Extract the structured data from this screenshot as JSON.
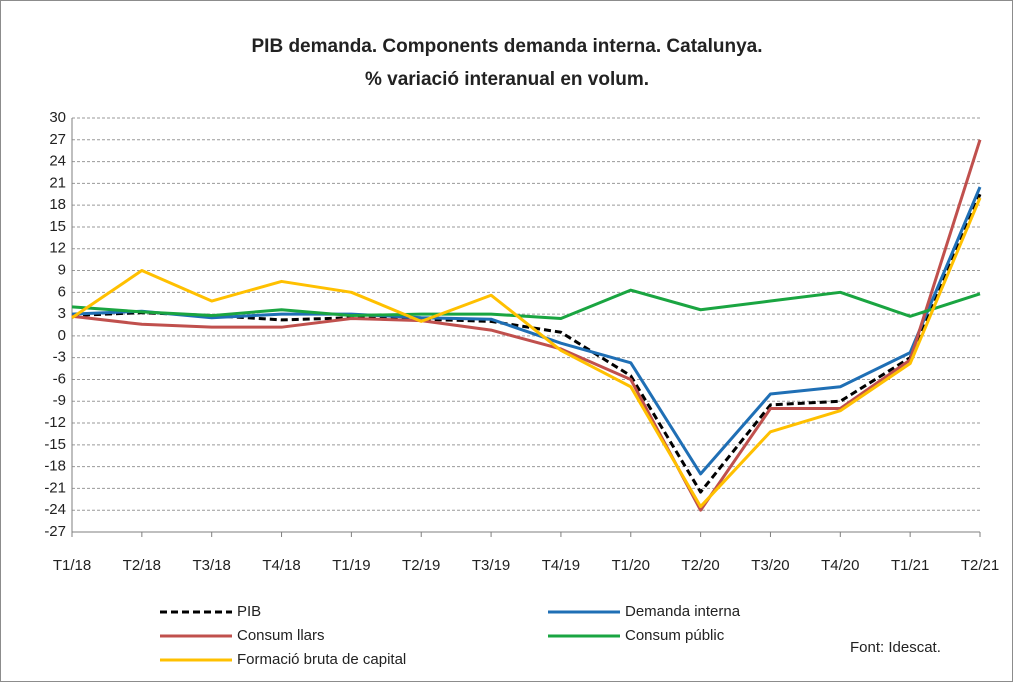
{
  "chart_data": {
    "type": "line",
    "title": [
      "PIB demanda. Components demanda interna. Catalunya.",
      "% variació interanual en volum."
    ],
    "annotation": "Font: Idescat.",
    "categories": [
      "T1/18",
      "T2/18",
      "T3/18",
      "T4/18",
      "T1/19",
      "T2/19",
      "T3/19",
      "T4/19",
      "T1/20",
      "T2/20",
      "T3/20",
      "T4/20",
      "T1/21",
      "T2/21"
    ],
    "series": [
      {
        "name": "PIB",
        "color": "#000000",
        "dash": true,
        "values": [
          2.8,
          3.2,
          2.8,
          2.2,
          2.5,
          2.3,
          2.0,
          0.5,
          -5.5,
          -21.5,
          -9.5,
          -9.0,
          -3.0,
          19.5
        ]
      },
      {
        "name": "Demanda interna",
        "color": "#1f6fb5",
        "values": [
          3.0,
          3.4,
          2.5,
          3.0,
          3.0,
          2.5,
          2.3,
          -1.0,
          -3.7,
          -19.0,
          -8.0,
          -7.0,
          -2.3,
          20.5
        ]
      },
      {
        "name": "Consum llars",
        "color": "#c0504d",
        "values": [
          2.7,
          1.6,
          1.2,
          1.2,
          2.4,
          2.1,
          0.8,
          -1.8,
          -6.0,
          -24.0,
          -10.0,
          -10.0,
          -3.3,
          27.0
        ]
      },
      {
        "name": "Consum públic",
        "color": "#1aa541",
        "values": [
          4.0,
          3.3,
          2.8,
          3.6,
          2.8,
          3.0,
          3.0,
          2.4,
          6.3,
          3.6,
          4.8,
          6.0,
          2.7,
          5.8
        ]
      },
      {
        "name": "Formació bruta de capital",
        "color": "#ffc000",
        "values": [
          2.5,
          9.0,
          4.8,
          7.5,
          6.0,
          2.0,
          5.6,
          -2.0,
          -7.0,
          -23.5,
          -13.2,
          -10.3,
          -3.8,
          19.0
        ]
      }
    ],
    "ylim": [
      -27,
      30
    ],
    "yticks": [
      -27,
      -24,
      -21,
      -18,
      -15,
      -12,
      -9,
      -6,
      -3,
      0,
      3,
      6,
      9,
      12,
      15,
      18,
      21,
      24,
      27,
      30
    ],
    "grid": true
  }
}
